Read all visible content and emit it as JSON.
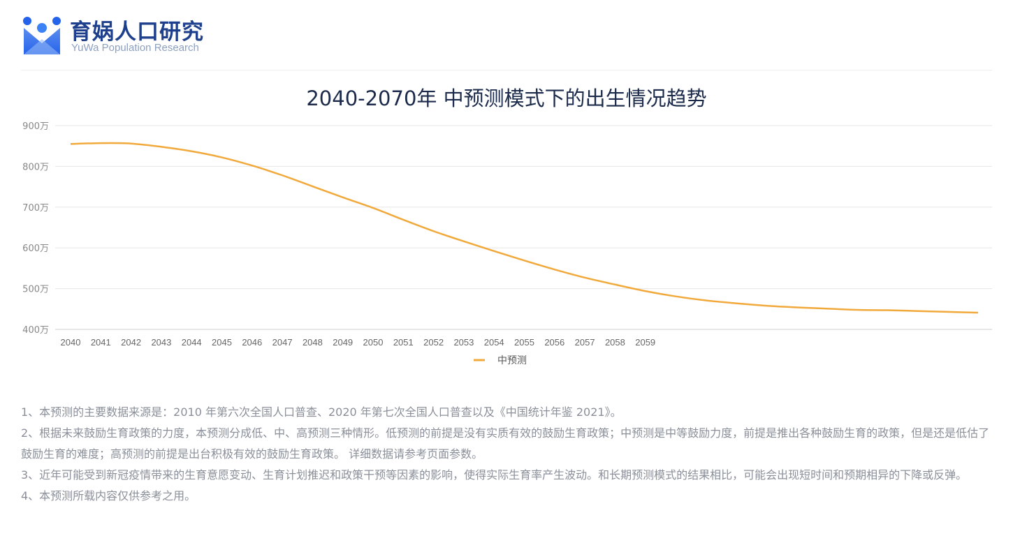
{
  "brand": {
    "name": "育娲人口研究",
    "subtitle": "YuWa Population Research"
  },
  "chart_title": "2040-2070年 中预测模式下的出生情况趋势",
  "colors": {
    "series": "#f2a93b",
    "grid": "#e6e6e6",
    "axis_text": "#888888"
  },
  "chart_data": {
    "type": "line",
    "title": "2040-2070年 中预测模式下的出生情况趋势",
    "xlabel": "",
    "ylabel": "",
    "ylim": [
      400,
      900
    ],
    "y_ticks": [
      900,
      800,
      700,
      600,
      500,
      400
    ],
    "y_tick_labels": [
      "900万",
      "800万",
      "700万",
      "600万",
      "500万",
      "400万"
    ],
    "x_tick_labels": [
      "2040",
      "2041",
      "2042",
      "2043",
      "2044",
      "2045",
      "2046",
      "2047",
      "2048",
      "2049",
      "2050",
      "2051",
      "2052",
      "2053",
      "2054",
      "2055",
      "2056",
      "2057",
      "2058",
      "2059"
    ],
    "x": [
      2040,
      2041,
      2042,
      2043,
      2044,
      2045,
      2046,
      2047,
      2048,
      2049,
      2050,
      2051,
      2052,
      2053,
      2054,
      2055,
      2056,
      2057,
      2058,
      2059,
      2060,
      2061,
      2062,
      2063,
      2064,
      2065,
      2066,
      2067,
      2068,
      2069,
      2070
    ],
    "series": [
      {
        "name": "中预测",
        "values": [
          855,
          857,
          856,
          848,
          837,
          822,
          802,
          778,
          751,
          724,
          698,
          669,
          641,
          616,
          592,
          569,
          547,
          527,
          510,
          494,
          481,
          471,
          464,
          458,
          454,
          451,
          448,
          447,
          445,
          443,
          441
        ]
      }
    ],
    "grid": true,
    "legend": "bottom-center"
  },
  "notes": [
    "1、本预测的主要数据来源是：2010 年第六次全国人口普查、2020 年第七次全国人口普查以及《中国统计年鉴 2021》。",
    "2、根据未来鼓励生育政策的力度，本预测分成低、中、高预测三种情形。低预测的前提是没有实质有效的鼓励生育政策；中预测是中等鼓励力度，前提是推出各种鼓励生育的政策，但是还是低估了鼓励生育的难度；高预测的前提是出台积极有效的鼓励生育政策。 详细数据请参考页面参数。",
    "3、近年可能受到新冠疫情带来的生育意愿变动、生育计划推迟和政策干预等因素的影响，使得实际生育率产生波动。和长期预测模式的结果相比，可能会出现短时间和预期相异的下降或反弹。",
    "4、本预测所载内容仅供参考之用。"
  ]
}
